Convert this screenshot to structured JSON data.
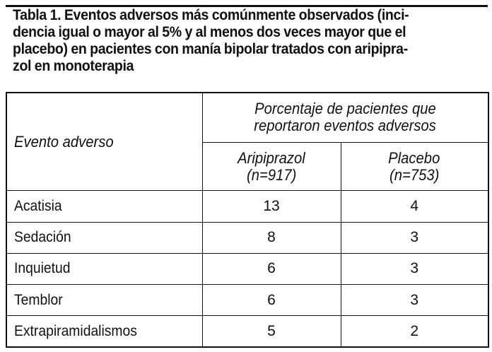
{
  "caption": {
    "lines": [
      "Tabla 1. Eventos adversos más comúnmente observados (inci-",
      "dencia igual o mayor al 5% y al menos dos veces mayor que el",
      "placebo) en pacientes con manía bipolar tratados con aripipra-",
      "zol en monoterapia"
    ]
  },
  "table": {
    "header": {
      "event_col": "Evento adverso",
      "group_line1": "Porcentaje de pacientes que",
      "group_line2": "reportaron eventos adversos",
      "col_a_line1": "Aripiprazol",
      "col_a_line2": "(n=917)",
      "col_b_line1": "Placebo",
      "col_b_line2": "(n=753)"
    },
    "rows": [
      {
        "event": "Acatisia",
        "aripiprazol": "13",
        "placebo": "4"
      },
      {
        "event": "Sedación",
        "aripiprazol": "8",
        "placebo": "3"
      },
      {
        "event": "Inquietud",
        "aripiprazol": "6",
        "placebo": "3"
      },
      {
        "event": "Temblor",
        "aripiprazol": "6",
        "placebo": "3"
      },
      {
        "event": "Extrapiramidalismos",
        "aripiprazol": "5",
        "placebo": "2"
      }
    ]
  }
}
